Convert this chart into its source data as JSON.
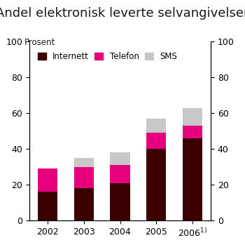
{
  "title": "Andel elektronisk leverte selvangivelser",
  "ylabel_left": "Prosent",
  "internett": [
    16,
    18,
    21,
    40,
    46
  ],
  "telefon": [
    13,
    12,
    10,
    9,
    7
  ],
  "sms": [
    0,
    5,
    7,
    8,
    10
  ],
  "color_internett": "#3b0000",
  "color_telefon": "#e6007e",
  "color_sms": "#c8c8c8",
  "ylim": [
    0,
    100
  ],
  "yticks": [
    0,
    20,
    40,
    60,
    80,
    100
  ],
  "bg_color": "#ffffff",
  "bar_width": 0.55,
  "title_fontsize": 13,
  "axis_fontsize": 8.5,
  "tick_fontsize": 9
}
